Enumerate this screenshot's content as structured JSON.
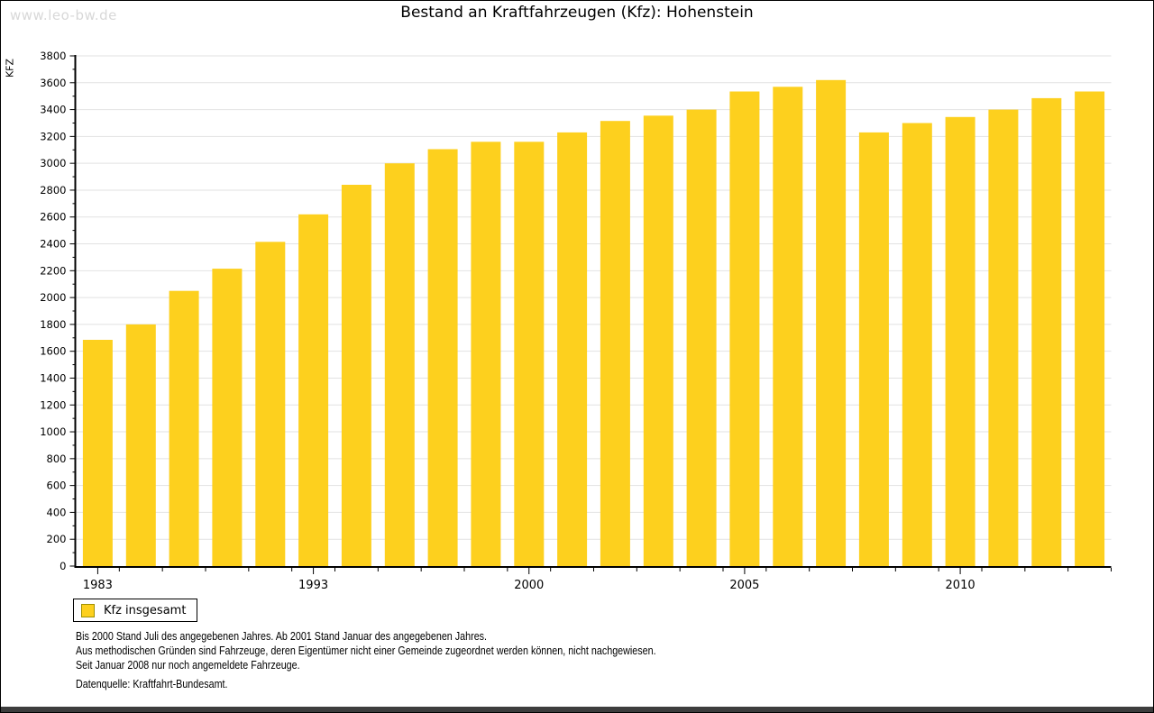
{
  "watermark": "www.leo-bw.de",
  "title": "Bestand an Kraftfahrzeugen (Kfz): Hohenstein",
  "ylabel": "KFZ",
  "legend": {
    "label": "Kfz insgesamt",
    "swatch_color": "#fdd01e",
    "swatch_border_color": "#a09000"
  },
  "footnotes": {
    "line1": "Bis 2000 Stand Juli des angegebenen Jahres. Ab 2001 Stand Januar des angegebenen Jahres.",
    "line2": "Aus methodischen Gründen sind Fahrzeuge, deren Eigentümer nicht einer Gemeinde zugeordnet werden können, nicht nachgewiesen.",
    "line3": "Seit Januar 2008 nur noch angemeldete Fahrzeuge."
  },
  "source": "Datenquelle: Kraftfahrt-Bundesamt.",
  "colors": {
    "bar": "#fdd01e",
    "grid": "#e2e2e2",
    "axis": "#000000",
    "watermark": "#d8d8d8",
    "bottom_bar": "#3d3d3d"
  },
  "chart_data": {
    "type": "bar",
    "title": "Bestand an Kraftfahrzeugen (Kfz): Hohenstein",
    "xlabel": "",
    "ylabel": "KFZ",
    "ylim": [
      0,
      3800
    ],
    "y_tick_step": 200,
    "y_minor_tick_step": 100,
    "grid": "horizontal-major",
    "legend_position": "bottom-left",
    "bar_count": 24,
    "series": [
      {
        "name": "Kfz insgesamt",
        "values": [
          1685,
          1800,
          2050,
          2215,
          2415,
          2620,
          2840,
          3000,
          3105,
          3160,
          3160,
          3230,
          3315,
          3355,
          3400,
          3535,
          3570,
          3620,
          3230,
          3300,
          3345,
          3400,
          3485,
          3535
        ]
      }
    ],
    "x_tick_labels": [
      {
        "bar_index": 0,
        "label": "1983"
      },
      {
        "bar_index": 5,
        "label": "1993"
      },
      {
        "bar_index": 10,
        "label": "2000"
      },
      {
        "bar_index": 15,
        "label": "2005"
      },
      {
        "bar_index": 20,
        "label": "2010"
      }
    ]
  }
}
